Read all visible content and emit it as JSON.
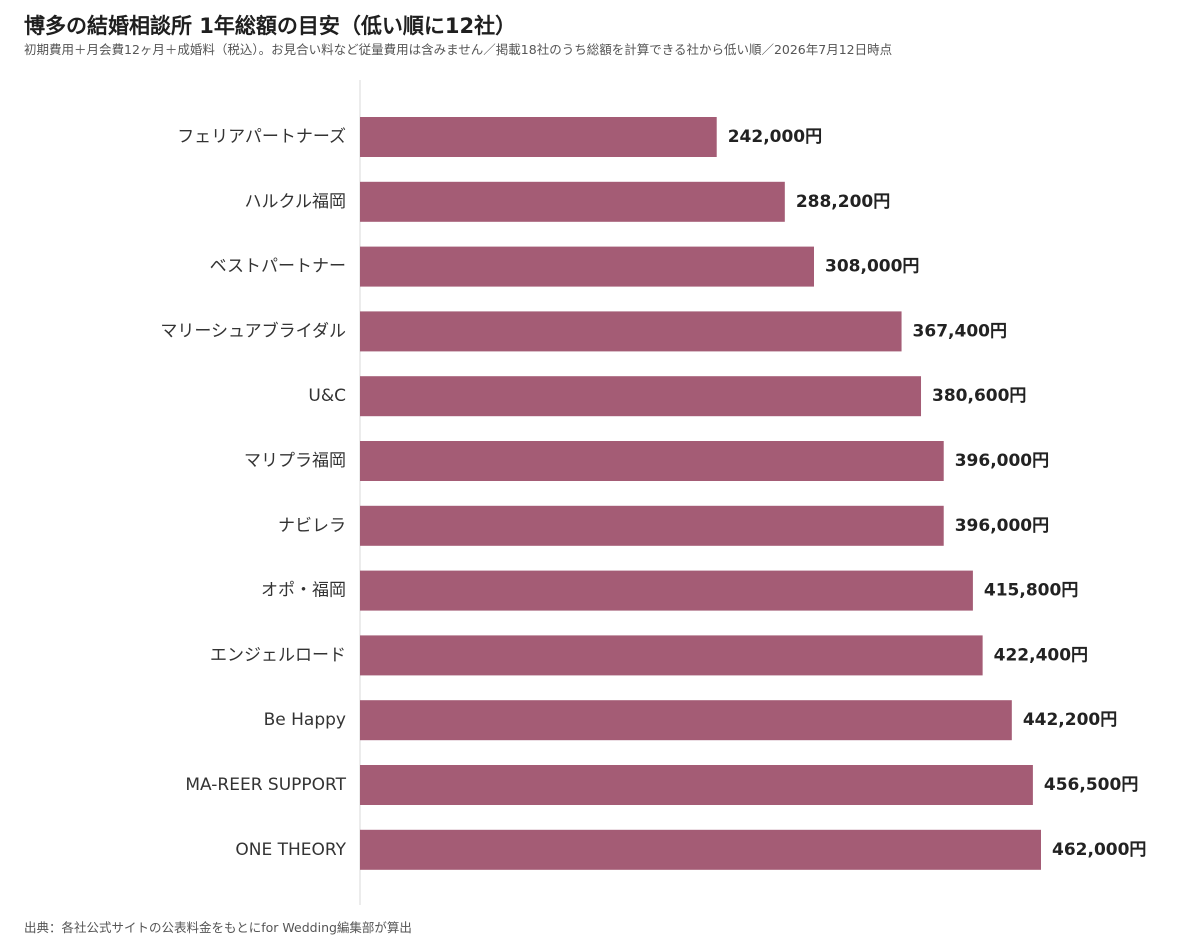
{
  "header": {
    "title": "博多の結婚相談所 1年総額の目安（低い順に12社）",
    "subtitle": "初期費用＋月会費12ヶ月＋成婚料（税込）。お見合い料など従量費用は含みません／掲載18社のうち総額を計算できる社から低い順／2026年7月12日時点"
  },
  "footer": {
    "source": "出典：各社公式サイトの公表料金をもとにfor Wedding編集部が算出"
  },
  "chart_data": {
    "type": "bar",
    "orientation": "horizontal",
    "categories": [
      "フェリアパートナーズ",
      "ハルクル福岡",
      "ベストパートナー",
      "マリーシュアブライダル",
      "U&C",
      "マリプラ福岡",
      "ナビレラ",
      "オポ・福岡",
      "エンジェルロード",
      "Be Happy",
      "MA-REER SUPPORT",
      "ONE THEORY"
    ],
    "values": [
      242000,
      288200,
      308000,
      367400,
      380600,
      396000,
      396000,
      415800,
      422400,
      442200,
      456500,
      462000
    ],
    "value_labels": [
      "242,000円",
      "288,200円",
      "308,000円",
      "367,400円",
      "380,600円",
      "396,000円",
      "396,000円",
      "415,800円",
      "422,400円",
      "442,200円",
      "456,500円",
      "462,000円"
    ],
    "xlim": [
      0,
      462000
    ],
    "grid": false,
    "legend": "none",
    "bar_color": "#a45c75",
    "axis_color": "#d8d8d8"
  }
}
